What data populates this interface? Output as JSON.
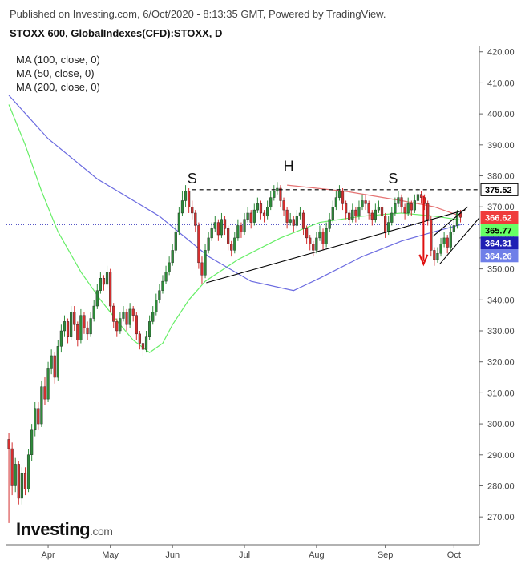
{
  "header": {
    "published": "Published on Investing.com, 6/Oct/2020 - 8:13:35 GMT, Powered by TradingView.",
    "symbol": "STOXX 600, GlobalIndexes(CFD):STOXX, D"
  },
  "logo": {
    "name": "Investing",
    "suffix": ".com"
  },
  "chart_data": {
    "type": "candlestick",
    "up_color": "#2e8b3a",
    "down_color": "#d32f2f",
    "grid": false,
    "categories": [
      null,
      null,
      null,
      null,
      null,
      null,
      null,
      null,
      null,
      null,
      null,
      null,
      "Apr",
      null,
      null,
      null,
      null,
      null,
      null,
      null,
      null,
      null,
      null,
      null,
      null,
      null,
      null,
      null,
      null,
      null,
      null,
      "May",
      null,
      null,
      null,
      null,
      null,
      null,
      null,
      null,
      null,
      null,
      null,
      null,
      null,
      null,
      null,
      null,
      null,
      null,
      "Jun",
      null,
      null,
      null,
      null,
      null,
      null,
      null,
      null,
      null,
      null,
      null,
      null,
      null,
      null,
      null,
      null,
      null,
      null,
      null,
      null,
      null,
      "Jul",
      null,
      null,
      null,
      null,
      null,
      null,
      null,
      null,
      null,
      null,
      null,
      null,
      null,
      null,
      null,
      null,
      null,
      null,
      null,
      null,
      null,
      "Aug",
      null,
      null,
      null,
      null,
      null,
      null,
      null,
      null,
      null,
      null,
      null,
      null,
      null,
      null,
      null,
      null,
      null,
      null,
      null,
      null,
      "Sep",
      null,
      null,
      null,
      null,
      null,
      null,
      null,
      null,
      null,
      null,
      null,
      null,
      null,
      null,
      null,
      null,
      null,
      null,
      null,
      null,
      "Oct",
      null,
      null
    ],
    "ohlc": [
      [
        295,
        297,
        268,
        292
      ],
      [
        292,
        294,
        277,
        280
      ],
      [
        280,
        289,
        278,
        287
      ],
      [
        287,
        288,
        274,
        276
      ],
      [
        276,
        286,
        274,
        284
      ],
      [
        284,
        286,
        277,
        279
      ],
      [
        279,
        292,
        278,
        290
      ],
      [
        290,
        300,
        288,
        298
      ],
      [
        298,
        307,
        296,
        305
      ],
      [
        305,
        307,
        298,
        300
      ],
      [
        300,
        314,
        299,
        312
      ],
      [
        312,
        315,
        306,
        308
      ],
      [
        308,
        320,
        307,
        318
      ],
      [
        318,
        324,
        316,
        322
      ],
      [
        322,
        323,
        313,
        315
      ],
      [
        315,
        327,
        314,
        325
      ],
      [
        325,
        332,
        323,
        330
      ],
      [
        330,
        335,
        328,
        333
      ],
      [
        333,
        334,
        326,
        328
      ],
      [
        328,
        338,
        327,
        336
      ],
      [
        336,
        338,
        330,
        332
      ],
      [
        332,
        333,
        325,
        327
      ],
      [
        327,
        337,
        326,
        335
      ],
      [
        335,
        336,
        329,
        331
      ],
      [
        331,
        333,
        327,
        329
      ],
      [
        329,
        336,
        328,
        334
      ],
      [
        334,
        340,
        333,
        338
      ],
      [
        338,
        345,
        337,
        343
      ],
      [
        343,
        349,
        342,
        347
      ],
      [
        347,
        348,
        343,
        345
      ],
      [
        345,
        351,
        344,
        349
      ],
      [
        349,
        350,
        336,
        338
      ],
      [
        338,
        339,
        331,
        333
      ],
      [
        333,
        334,
        328,
        330
      ],
      [
        330,
        336,
        329,
        334
      ],
      [
        334,
        338,
        333,
        336
      ],
      [
        336,
        337,
        330,
        332
      ],
      [
        332,
        339,
        331,
        337
      ],
      [
        337,
        338,
        333,
        335
      ],
      [
        335,
        336,
        327,
        329
      ],
      [
        329,
        330,
        324,
        326
      ],
      [
        326,
        327,
        322,
        324
      ],
      [
        324,
        330,
        323,
        328
      ],
      [
        328,
        335,
        327,
        333
      ],
      [
        333,
        338,
        332,
        336
      ],
      [
        336,
        342,
        335,
        340
      ],
      [
        340,
        345,
        339,
        343
      ],
      [
        343,
        348,
        342,
        346
      ],
      [
        346,
        351,
        345,
        349
      ],
      [
        349,
        354,
        348,
        352
      ],
      [
        352,
        358,
        351,
        356
      ],
      [
        356,
        364,
        355,
        362
      ],
      [
        362,
        370,
        361,
        368
      ],
      [
        368,
        375,
        367,
        372
      ],
      [
        372,
        377,
        370,
        375
      ],
      [
        375,
        376,
        368,
        370
      ],
      [
        370,
        372,
        366,
        368
      ],
      [
        368,
        369,
        362,
        364
      ],
      [
        364,
        365,
        350,
        352
      ],
      [
        352,
        354,
        345,
        348
      ],
      [
        348,
        358,
        347,
        356
      ],
      [
        356,
        362,
        355,
        360
      ],
      [
        360,
        365,
        359,
        363
      ],
      [
        363,
        367,
        362,
        365
      ],
      [
        365,
        366,
        359,
        361
      ],
      [
        361,
        368,
        360,
        366
      ],
      [
        366,
        367,
        361,
        363
      ],
      [
        363,
        364,
        356,
        358
      ],
      [
        358,
        359,
        354,
        356
      ],
      [
        356,
        362,
        355,
        360
      ],
      [
        360,
        366,
        359,
        364
      ],
      [
        364,
        365,
        360,
        362
      ],
      [
        362,
        368,
        361,
        366
      ],
      [
        366,
        370,
        365,
        368
      ],
      [
        368,
        369,
        363,
        365
      ],
      [
        365,
        371,
        364,
        369
      ],
      [
        369,
        373,
        368,
        371
      ],
      [
        371,
        372,
        366,
        368
      ],
      [
        368,
        369,
        365,
        367
      ],
      [
        367,
        372,
        366,
        370
      ],
      [
        370,
        375,
        369,
        373
      ],
      [
        373,
        377,
        372,
        375
      ],
      [
        375,
        378,
        374,
        376
      ],
      [
        376,
        377,
        370,
        372
      ],
      [
        372,
        373,
        367,
        369
      ],
      [
        369,
        370,
        363,
        365
      ],
      [
        365,
        368,
        364,
        366
      ],
      [
        366,
        367,
        362,
        364
      ],
      [
        364,
        369,
        363,
        367
      ],
      [
        367,
        370,
        366,
        368
      ],
      [
        368,
        369,
        361,
        363
      ],
      [
        363,
        364,
        358,
        360
      ],
      [
        360,
        361,
        356,
        358
      ],
      [
        358,
        359,
        354,
        356
      ],
      [
        356,
        362,
        355,
        360
      ],
      [
        360,
        364,
        359,
        362
      ],
      [
        362,
        363,
        356,
        358
      ],
      [
        358,
        365,
        357,
        363
      ],
      [
        363,
        368,
        362,
        366
      ],
      [
        366,
        372,
        365,
        370
      ],
      [
        370,
        375,
        369,
        373
      ],
      [
        373,
        377,
        372,
        375
      ],
      [
        375,
        376,
        369,
        371
      ],
      [
        371,
        372,
        366,
        368
      ],
      [
        368,
        369,
        364,
        366
      ],
      [
        366,
        371,
        365,
        369
      ],
      [
        369,
        370,
        365,
        367
      ],
      [
        367,
        372,
        366,
        370
      ],
      [
        370,
        374,
        369,
        372
      ],
      [
        372,
        374,
        369,
        371
      ],
      [
        371,
        372,
        366,
        368
      ],
      [
        368,
        369,
        364,
        366
      ],
      [
        366,
        371,
        365,
        369
      ],
      [
        369,
        372,
        368,
        370
      ],
      [
        370,
        371,
        365,
        367
      ],
      [
        367,
        368,
        360,
        362
      ],
      [
        362,
        367,
        361,
        365
      ],
      [
        365,
        370,
        364,
        368
      ],
      [
        368,
        373,
        367,
        371
      ],
      [
        371,
        375,
        370,
        373
      ],
      [
        373,
        374,
        368,
        370
      ],
      [
        370,
        371,
        366,
        368
      ],
      [
        368,
        373,
        367,
        371
      ],
      [
        371,
        372,
        367,
        369
      ],
      [
        369,
        374,
        368,
        372
      ],
      [
        372,
        376,
        371,
        374
      ],
      [
        374,
        375,
        371,
        373
      ],
      [
        373,
        374,
        369,
        371
      ],
      [
        371,
        372,
        364,
        366
      ],
      [
        366,
        367,
        354,
        356
      ],
      [
        356,
        357,
        351,
        353
      ],
      [
        353,
        357,
        352,
        355
      ],
      [
        355,
        360,
        354,
        358
      ],
      [
        358,
        362,
        357,
        360
      ],
      [
        360,
        361,
        355,
        357
      ],
      [
        357,
        364,
        356,
        362
      ],
      [
        362,
        366,
        361,
        364
      ],
      [
        364,
        369,
        363,
        368
      ],
      [
        368,
        369,
        365,
        366.62
      ]
    ],
    "xlim": [
      -0.75,
      143.75
    ],
    "ylim": [
      261,
      422
    ],
    "yticks": [
      {
        "value": 270,
        "label": "270.00"
      },
      {
        "value": 280,
        "label": "280.00"
      },
      {
        "value": 290,
        "label": "290.00"
      },
      {
        "value": 300,
        "label": "300.00"
      },
      {
        "value": 310,
        "label": "310.00"
      },
      {
        "value": 320,
        "label": "320.00"
      },
      {
        "value": 330,
        "label": "330.00"
      },
      {
        "value": 340,
        "label": "340.00"
      },
      {
        "value": 350,
        "label": "350.00"
      },
      {
        "value": 360,
        "label": "360.00"
      },
      {
        "value": 370,
        "label": "370.00"
      },
      {
        "value": 380,
        "label": "380.00"
      },
      {
        "value": 390,
        "label": "390.00"
      },
      {
        "value": 400,
        "label": "400.00"
      },
      {
        "value": 410,
        "label": "410.00"
      },
      {
        "value": 420,
        "label": "420.00"
      }
    ],
    "series": [
      {
        "name": "MA (100, close, 0)",
        "color": "#e57373",
        "x": [
          85,
          103,
          120,
          130,
          138
        ],
        "values": [
          377,
          375,
          372,
          370,
          367
        ]
      },
      {
        "name": "MA (50, close, 0)",
        "color": "#66ee66",
        "x": [
          0,
          5,
          10,
          15,
          22,
          28,
          34,
          38,
          43,
          47,
          50,
          55,
          60,
          70,
          83,
          95,
          108,
          120,
          130,
          138
        ],
        "values": [
          403,
          390,
          375,
          362,
          349,
          340,
          332,
          327,
          323,
          326,
          332,
          340,
          346,
          353,
          360,
          365,
          367,
          368,
          367,
          365.77
        ]
      },
      {
        "name": "MA (200, close, 0)",
        "color": "#6a6ae0",
        "x": [
          0,
          12,
          27,
          46,
          61,
          74,
          87,
          95,
          108,
          120,
          130,
          138
        ],
        "values": [
          406,
          392,
          379,
          367,
          354,
          346,
          343,
          347,
          354,
          359,
          362,
          364.26
        ]
      }
    ],
    "price_labels": [
      {
        "value": 375.52,
        "color": "#ffffff",
        "text_color": "#000000"
      },
      {
        "value": 366.62,
        "color": "#ef3b3b",
        "text_color": "#ffffff"
      },
      {
        "value": 365.77,
        "color": "#66ff66",
        "text_color": "#000000"
      },
      {
        "value": 364.31,
        "color": "#1f1fb4",
        "text_color": "#ffffff"
      },
      {
        "value": 364.26,
        "color": "#6f7fe8",
        "text_color": "#ffffff"
      }
    ],
    "price_line": {
      "value": 364.31,
      "color": "#1f1fb4"
    },
    "drawings": [
      {
        "x": [
          56,
          143.75
        ],
        "y": [
          375.52,
          375.52
        ],
        "color": "#000000",
        "dash": true
      },
      {
        "x": [
          60.3,
          139.4
        ],
        "y": [
          345.5,
          369
        ],
        "color": "#000000",
        "dash": false
      },
      {
        "x": [
          129.6,
          140.2
        ],
        "y": [
          360.5,
          370
        ],
        "color": "#000000",
        "dash": false
      },
      {
        "x": [
          131.6,
          143.75
        ],
        "y": [
          351.5,
          366.5
        ],
        "color": "#000000",
        "dash": false
      }
    ],
    "arrow": {
      "x": [
        126.7,
        126.7
      ],
      "y": [
        373.5,
        351.5
      ],
      "color": "#e01010"
    },
    "annotations": [
      {
        "text": "S",
        "x": 56,
        "y": 377.5
      },
      {
        "text": "H",
        "x": 85.5,
        "y": 381.5
      },
      {
        "text": "S",
        "x": 117.4,
        "y": 377.5
      }
    ]
  }
}
